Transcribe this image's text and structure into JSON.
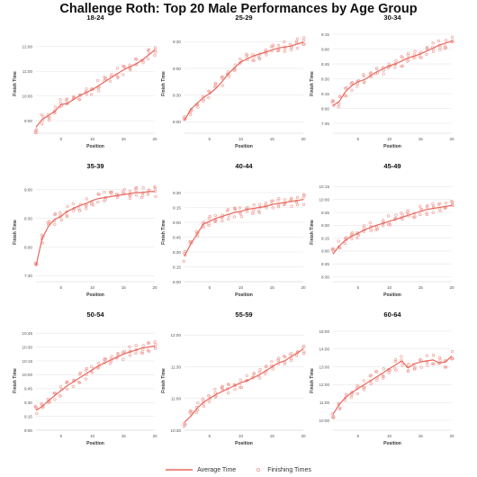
{
  "title": "Challenge Roth: Top 20 Male Performances by Age Group",
  "legend": {
    "line_label": "Average Time",
    "dots_label": "Finishing Times"
  },
  "colors": {
    "line": "#e8685e",
    "dots": "#f0a49d",
    "grid": "#e6e6e6"
  },
  "chart_data": [
    {
      "type": "line",
      "title": "18-24",
      "xlabel": "Position",
      "ylabel": "Finish Time",
      "xlim": [
        1,
        20
      ],
      "x_ticks": [
        5,
        10,
        15,
        20
      ],
      "ylim": [
        0,
        1
      ],
      "y_ticks": [
        0.125,
        0.375,
        0.625,
        0.875
      ],
      "y_tick_labels": [
        "9:00",
        "10:00",
        "11:00",
        "12:00"
      ],
      "average": [
        0.06,
        0.14,
        0.18,
        0.22,
        0.29,
        0.3,
        0.34,
        0.38,
        0.41,
        0.44,
        0.48,
        0.52,
        0.56,
        0.6,
        0.64,
        0.67,
        0.7,
        0.74,
        0.79,
        0.84
      ]
    },
    {
      "type": "line",
      "title": "25-29",
      "xlabel": "Position",
      "ylabel": "Finish Time",
      "xlim": [
        1,
        20
      ],
      "x_ticks": [
        5,
        10,
        15,
        20
      ],
      "ylim": [
        0,
        1
      ],
      "y_ticks": [
        0.115,
        0.385,
        0.655,
        0.925
      ],
      "y_tick_labels": [
        "8:00",
        "8:30",
        "9:00",
        "9:30"
      ],
      "average": [
        0.13,
        0.24,
        0.3,
        0.36,
        0.4,
        0.45,
        0.52,
        0.6,
        0.66,
        0.72,
        0.75,
        0.78,
        0.8,
        0.82,
        0.84,
        0.86,
        0.87,
        0.88,
        0.9,
        0.92
      ]
    },
    {
      "type": "line",
      "title": "30-34",
      "xlabel": "Position",
      "ylabel": "Finish Time",
      "xlim": [
        1,
        20
      ],
      "x_ticks": [
        5,
        10,
        15,
        20
      ],
      "ylim": [
        0,
        1
      ],
      "y_ticks": [
        0.1,
        0.25,
        0.4,
        0.55,
        0.7,
        0.85,
        1.0
      ],
      "y_tick_labels": [
        "7:45",
        "8:00",
        "8:15",
        "8:30",
        "8:45",
        "9:00",
        "9:15"
      ],
      "average": [
        0.28,
        0.32,
        0.42,
        0.48,
        0.52,
        0.54,
        0.58,
        0.62,
        0.65,
        0.68,
        0.7,
        0.73,
        0.76,
        0.78,
        0.8,
        0.83,
        0.86,
        0.89,
        0.91,
        0.93
      ]
    },
    {
      "type": "line",
      "title": "35-39",
      "xlabel": "Position",
      "ylabel": "Finish Time",
      "xlim": [
        1,
        20
      ],
      "x_ticks": [
        5,
        10,
        15,
        20
      ],
      "ylim": [
        0,
        1
      ],
      "y_ticks": [
        0.06,
        0.35,
        0.64,
        0.93
      ],
      "y_tick_labels": [
        "7:30",
        "8:00",
        "8:30",
        "9:00"
      ],
      "average": [
        0.16,
        0.44,
        0.56,
        0.63,
        0.66,
        0.71,
        0.74,
        0.77,
        0.79,
        0.82,
        0.84,
        0.85,
        0.86,
        0.87,
        0.88,
        0.89,
        0.9,
        0.9,
        0.91,
        0.91
      ]
    },
    {
      "type": "line",
      "title": "40-44",
      "xlabel": "Position",
      "ylabel": "Finish Time",
      "xlim": [
        1,
        20
      ],
      "x_ticks": [
        5,
        10,
        15,
        20
      ],
      "ylim": [
        0,
        1
      ],
      "y_ticks": [
        0.0,
        0.15,
        0.3,
        0.45,
        0.6,
        0.75,
        0.9,
        1.05
      ],
      "y_tick_labels": [
        "8:00",
        "8:15",
        "8:30",
        "8:45",
        "9:00",
        "9:15",
        "9:30",
        "9:45"
      ],
      "average": [
        0.26,
        0.38,
        0.48,
        0.58,
        0.61,
        0.64,
        0.66,
        0.68,
        0.7,
        0.71,
        0.73,
        0.74,
        0.75,
        0.76,
        0.78,
        0.79,
        0.8,
        0.81,
        0.82,
        0.83
      ]
    },
    {
      "type": "line",
      "title": "45-49",
      "xlabel": "Position",
      "ylabel": "Finish Time",
      "xlim": [
        1,
        20
      ],
      "x_ticks": [
        5,
        10,
        15,
        20
      ],
      "ylim": [
        0,
        1
      ],
      "y_ticks": [
        0.05,
        0.18,
        0.31,
        0.44,
        0.57,
        0.7,
        0.83,
        0.96
      ],
      "y_tick_labels": [
        "8:30",
        "8:45",
        "9:00",
        "9:15",
        "9:30",
        "9:45",
        "10:00",
        "10:15"
      ],
      "average": [
        0.28,
        0.36,
        0.42,
        0.46,
        0.49,
        0.52,
        0.55,
        0.57,
        0.59,
        0.61,
        0.63,
        0.65,
        0.67,
        0.69,
        0.71,
        0.73,
        0.74,
        0.75,
        0.76,
        0.77
      ]
    },
    {
      "type": "line",
      "title": "50-54",
      "xlabel": "Position",
      "ylabel": "Finish Time",
      "xlim": [
        1,
        20
      ],
      "x_ticks": [
        5,
        10,
        15,
        20
      ],
      "ylim": [
        0,
        1
      ],
      "y_ticks": [
        0.0,
        0.14,
        0.28,
        0.42,
        0.56,
        0.7,
        0.84,
        0.98
      ],
      "y_tick_labels": [
        "9:00",
        "9:15",
        "9:30",
        "9:45",
        "10:00",
        "10:15",
        "10:30",
        "10:45"
      ],
      "average": [
        0.2,
        0.24,
        0.3,
        0.35,
        0.4,
        0.45,
        0.49,
        0.53,
        0.57,
        0.61,
        0.65,
        0.68,
        0.71,
        0.74,
        0.77,
        0.79,
        0.81,
        0.83,
        0.84,
        0.85
      ]
    },
    {
      "type": "line",
      "title": "55-59",
      "xlabel": "Position",
      "ylabel": "Finish Time",
      "xlim": [
        1,
        20
      ],
      "x_ticks": [
        5,
        10,
        15,
        20
      ],
      "ylim": [
        0,
        1
      ],
      "y_ticks": [
        0.0,
        0.32,
        0.64,
        0.96
      ],
      "y_tick_labels": [
        "10:30",
        "11:00",
        "11:30",
        "12:00"
      ],
      "average": [
        0.08,
        0.14,
        0.22,
        0.28,
        0.32,
        0.36,
        0.39,
        0.42,
        0.45,
        0.48,
        0.5,
        0.53,
        0.56,
        0.6,
        0.64,
        0.68,
        0.7,
        0.74,
        0.78,
        0.82
      ]
    },
    {
      "type": "line",
      "title": "60-64",
      "xlabel": "Position",
      "ylabel": "Finish Time",
      "xlim": [
        1,
        20
      ],
      "x_ticks": [
        5,
        10,
        15,
        20
      ],
      "ylim": [
        0,
        1
      ],
      "y_ticks": [
        0.1,
        0.28,
        0.46,
        0.64,
        0.82,
        1.0
      ],
      "y_tick_labels": [
        "10:00",
        "11:00",
        "12:00",
        "13:00",
        "14:00",
        "15:00"
      ],
      "average": [
        0.16,
        0.26,
        0.33,
        0.38,
        0.42,
        0.46,
        0.5,
        0.54,
        0.58,
        0.62,
        0.66,
        0.7,
        0.63,
        0.67,
        0.69,
        0.7,
        0.71,
        0.68,
        0.69,
        0.75
      ]
    }
  ]
}
